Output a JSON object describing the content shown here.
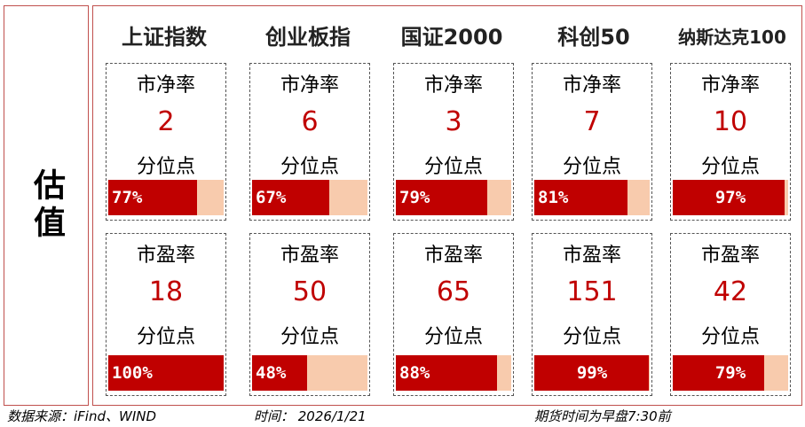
{
  "side_label": "估值",
  "columns": [
    {
      "name": "上证指数"
    },
    {
      "name": "创业板指"
    },
    {
      "name": "国证2000"
    },
    {
      "name": "科创50"
    },
    {
      "name": "纳斯达克100"
    }
  ],
  "cards": {
    "pb": [
      {
        "metric": "市净率",
        "value": "2",
        "pct_label": "分位点",
        "pct_text": "77%",
        "pct": 77
      },
      {
        "metric": "市净率",
        "value": "6",
        "pct_label": "分位点",
        "pct_text": "67%",
        "pct": 67
      },
      {
        "metric": "市净率",
        "value": "3",
        "pct_label": "分位点",
        "pct_text": "79%",
        "pct": 79
      },
      {
        "metric": "市净率",
        "value": "7",
        "pct_label": "分位点",
        "pct_text": "81%",
        "pct": 81
      },
      {
        "metric": "市净率",
        "value": "10",
        "pct_label": "分位点",
        "pct_text": "97%",
        "pct": 97
      }
    ],
    "pe": [
      {
        "metric": "市盈率",
        "value": "18",
        "pct_label": "分位点",
        "pct_text": "100%",
        "pct": 100
      },
      {
        "metric": "市盈率",
        "value": "50",
        "pct_label": "分位点",
        "pct_text": "48%",
        "pct": 48
      },
      {
        "metric": "市盈率",
        "value": "65",
        "pct_label": "分位点",
        "pct_text": "88%",
        "pct": 88
      },
      {
        "metric": "市盈率",
        "value": "151",
        "pct_label": "分位点",
        "pct_text": "99%",
        "pct": 99
      },
      {
        "metric": "市盈率",
        "value": "42",
        "pct_label": "分位点",
        "pct_text": "79%",
        "pct": 79
      }
    ]
  },
  "colors": {
    "fill": "#c00000",
    "track": "#f8cbad",
    "border": "#c0504d"
  },
  "footer": {
    "source": "数据来源：iFind、WIND",
    "time": "时间： 2026/1/21",
    "note": "期货时间为早盘7:30前"
  }
}
